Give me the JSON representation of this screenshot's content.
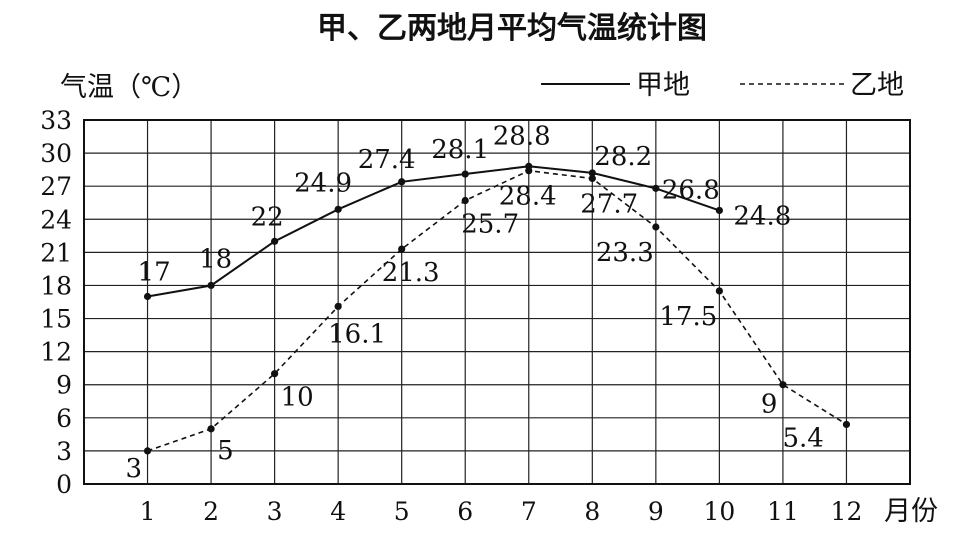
{
  "chart_data": {
    "type": "line",
    "title": "甲、乙两地月平均气温统计图",
    "ylabel": "气温（℃）",
    "xlabel": "月份",
    "categories": [
      "1",
      "2",
      "3",
      "4",
      "5",
      "6",
      "7",
      "8",
      "9",
      "10",
      "11",
      "12"
    ],
    "yticks": [
      "0",
      "3",
      "6",
      "9",
      "12",
      "15",
      "18",
      "21",
      "24",
      "27",
      "30",
      "33"
    ],
    "ylim": [
      0,
      33
    ],
    "grid": true,
    "legend": "top-right",
    "series": [
      {
        "name": "甲地",
        "style": "solid",
        "x": [
          1,
          2,
          3,
          4,
          5,
          6,
          7,
          8,
          9,
          10
        ],
        "values": [
          17,
          18,
          22,
          24.9,
          27.4,
          28.1,
          28.8,
          28.2,
          26.8,
          24.8
        ],
        "labels": [
          "17",
          "18",
          "22",
          "24.9",
          "27.4",
          "28.1",
          "28.8",
          "28.2",
          "26.8",
          "24.8"
        ]
      },
      {
        "name": "乙地",
        "style": "dashed",
        "x": [
          1,
          2,
          3,
          4,
          5,
          6,
          7,
          8,
          9,
          10,
          11,
          12
        ],
        "values": [
          3,
          5,
          10,
          16.1,
          21.3,
          25.7,
          28.4,
          27.7,
          23.3,
          17.5,
          9,
          5.4
        ],
        "labels": [
          "3",
          "5",
          "10",
          "16.1",
          "21.3",
          "25.7",
          "28.4",
          "27.7",
          "23.3",
          "17.5",
          "9",
          "5.4"
        ]
      }
    ]
  }
}
